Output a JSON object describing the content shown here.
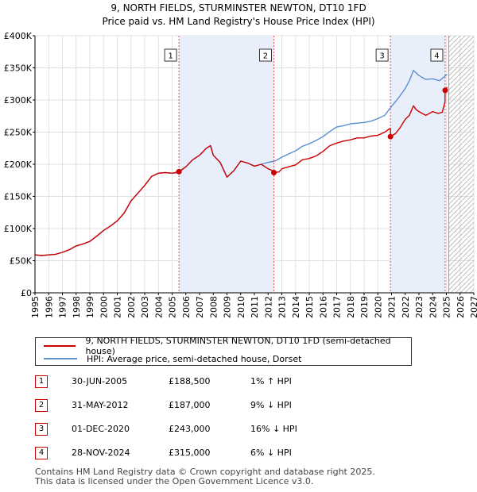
{
  "title_line1": "9, NORTH FIELDS, STURMINSTER NEWTON, DT10 1FD",
  "title_line2": "Price paid vs. HM Land Registry's House Price Index (HPI)",
  "chart_data": {
    "type": "line",
    "title": "9, NORTH FIELDS, STURMINSTER NEWTON, DT10 1FD — Price paid vs. HM Land Registry's House Price Index (HPI)",
    "xlabel": "",
    "ylabel": "",
    "xlim": [
      1995,
      2027
    ],
    "ylim": [
      0,
      400000
    ],
    "y_ticks": [
      0,
      50000,
      100000,
      150000,
      200000,
      250000,
      300000,
      350000,
      400000
    ],
    "y_tick_labels": [
      "£0",
      "£50K",
      "£100K",
      "£150K",
      "£200K",
      "£250K",
      "£300K",
      "£350K",
      "£400K"
    ],
    "x_ticks": [
      1995,
      1996,
      1997,
      1998,
      1999,
      2000,
      2001,
      2002,
      2003,
      2004,
      2005,
      2006,
      2007,
      2008,
      2009,
      2010,
      2011,
      2012,
      2013,
      2014,
      2015,
      2016,
      2017,
      2018,
      2019,
      2020,
      2021,
      2022,
      2023,
      2024,
      2025,
      2026,
      2027
    ],
    "grid": true,
    "colors": {
      "property": "#cc0000",
      "hpi": "#5b8fd0",
      "shade": "#e8eefa",
      "marker_line": "#e05050"
    },
    "forecast_start": 2025.17,
    "series": [
      {
        "name": "9, NORTH FIELDS, STURMINSTER NEWTON, DT10 1FD (semi-detached house)",
        "x": [
          1995.0,
          1995.5,
          1996.0,
          1996.5,
          1997.0,
          1997.5,
          1998.0,
          1998.5,
          1999.0,
          1999.5,
          2000.0,
          2000.5,
          2001.0,
          2001.5,
          2002.0,
          2002.5,
          2003.0,
          2003.5,
          2004.0,
          2004.5,
          2005.0,
          2005.5,
          2006.0,
          2006.5,
          2007.0,
          2007.5,
          2007.8,
          2008.0,
          2008.5,
          2009.0,
          2009.5,
          2010.0,
          2010.5,
          2011.0,
          2011.5,
          2012.0,
          2012.42,
          2012.43,
          2012.8,
          2013.0,
          2013.5,
          2014.0,
          2014.5,
          2015.0,
          2015.5,
          2016.0,
          2016.5,
          2017.0,
          2017.5,
          2018.0,
          2018.5,
          2019.0,
          2019.5,
          2020.0,
          2020.5,
          2020.92,
          2020.93,
          2021.3,
          2021.6,
          2022.0,
          2022.3,
          2022.6,
          2022.8,
          2023.0,
          2023.5,
          2024.0,
          2024.4,
          2024.7,
          2024.9,
          2024.91,
          2025.05
        ],
        "values": [
          59000,
          58000,
          59000,
          60000,
          63000,
          67000,
          73000,
          76000,
          80000,
          88000,
          97000,
          104000,
          112000,
          124000,
          143000,
          155000,
          167000,
          181000,
          186000,
          187000,
          186000,
          188500,
          196000,
          207000,
          214000,
          225000,
          229000,
          214000,
          203000,
          180000,
          190000,
          205000,
          202000,
          197000,
          200000,
          193000,
          189000,
          187000,
          188000,
          193000,
          196000,
          199000,
          207000,
          209000,
          213000,
          220000,
          229000,
          233000,
          236000,
          238000,
          241000,
          241000,
          244000,
          245000,
          250000,
          256000,
          243000,
          248000,
          256000,
          270000,
          276000,
          291000,
          285000,
          282000,
          276000,
          282000,
          279000,
          281000,
          297000,
          315000,
          320000
        ]
      },
      {
        "name": "HPI: Average price, semi-detached house, Dorset",
        "x": [
          1995.0,
          1995.5,
          1996.0,
          1996.5,
          1997.0,
          1997.5,
          1998.0,
          1998.5,
          1999.0,
          1999.5,
          2000.0,
          2000.5,
          2001.0,
          2001.5,
          2002.0,
          2002.5,
          2003.0,
          2003.5,
          2004.0,
          2004.5,
          2005.0,
          2005.5,
          2006.0,
          2006.5,
          2007.0,
          2007.5,
          2007.8,
          2008.0,
          2008.5,
          2009.0,
          2009.5,
          2010.0,
          2010.5,
          2011.0,
          2011.5,
          2012.0,
          2012.5,
          2013.0,
          2013.5,
          2014.0,
          2014.5,
          2015.0,
          2015.5,
          2016.0,
          2016.5,
          2017.0,
          2017.5,
          2018.0,
          2018.5,
          2019.0,
          2019.5,
          2020.0,
          2020.5,
          2021.0,
          2021.5,
          2022.0,
          2022.3,
          2022.6,
          2022.8,
          2023.0,
          2023.5,
          2024.0,
          2024.5,
          2025.05
        ],
        "values": [
          59000,
          58000,
          59000,
          60000,
          63000,
          67000,
          73000,
          76000,
          80000,
          88000,
          97000,
          104000,
          112000,
          124000,
          143000,
          155000,
          167000,
          181000,
          186000,
          187000,
          186000,
          187000,
          196000,
          207000,
          214000,
          225000,
          229000,
          214000,
          203000,
          180000,
          190000,
          205000,
          202000,
          197000,
          200000,
          203000,
          205000,
          211000,
          216000,
          221000,
          228000,
          232000,
          237000,
          243000,
          251000,
          258000,
          260000,
          263000,
          264000,
          265000,
          267000,
          271000,
          276000,
          290000,
          303000,
          318000,
          330000,
          346000,
          342000,
          338000,
          332000,
          333000,
          330000,
          340000
        ]
      }
    ],
    "sale_markers": [
      {
        "label": "1",
        "x": 2005.5,
        "value": 188500
      },
      {
        "label": "2",
        "x": 2012.42,
        "value": 187000
      },
      {
        "label": "3",
        "x": 2020.92,
        "value": 243000
      },
      {
        "label": "4",
        "x": 2024.91,
        "value": 315000
      }
    ],
    "shaded_ranges": [
      [
        2005.5,
        2012.42
      ],
      [
        2020.92,
        2024.91
      ]
    ]
  },
  "legend": {
    "property_label": "9, NORTH FIELDS, STURMINSTER NEWTON, DT10 1FD (semi-detached house)",
    "hpi_label": "HPI: Average price, semi-detached house, Dorset"
  },
  "sales": [
    {
      "num": "1",
      "date": "30-JUN-2005",
      "price": "£188,500",
      "hpi": "1% ↑ HPI"
    },
    {
      "num": "2",
      "date": "31-MAY-2012",
      "price": "£187,000",
      "hpi": "9% ↓ HPI"
    },
    {
      "num": "3",
      "date": "01-DEC-2020",
      "price": "£243,000",
      "hpi": "16% ↓ HPI"
    },
    {
      "num": "4",
      "date": "28-NOV-2024",
      "price": "£315,000",
      "hpi": "6% ↓ HPI"
    }
  ],
  "footer": {
    "line1": "Contains HM Land Registry data © Crown copyright and database right 2025.",
    "line2": "This data is licensed under the Open Government Licence v3.0."
  }
}
